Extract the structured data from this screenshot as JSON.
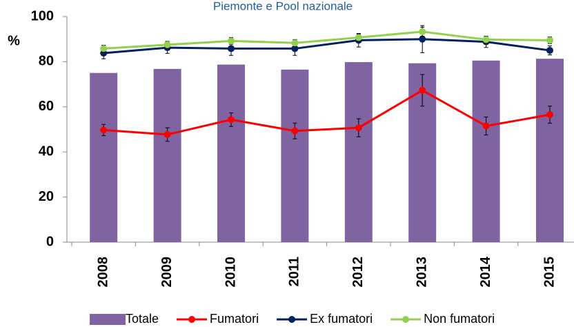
{
  "chart_data": {
    "type": "bar_line",
    "title": "Piemonte e Pool nazionale",
    "y_label": "%",
    "categories": [
      "2008",
      "2009",
      "2010",
      "2011",
      "2012",
      "2013",
      "2014",
      "2015"
    ],
    "ylim": [
      0,
      100
    ],
    "yticks": [
      0,
      20,
      40,
      60,
      80,
      100
    ],
    "grid": false,
    "legend": "bottom",
    "series": [
      {
        "name": "Totale",
        "kind": "bar",
        "color": "#8064a2",
        "values": [
          75,
          76.8,
          78.7,
          76.5,
          79.8,
          79.3,
          80.5,
          81.3
        ]
      },
      {
        "name": "Fumatori",
        "kind": "line",
        "color": "#ff0000",
        "values": [
          49.7,
          47.7,
          54.3,
          49.3,
          50.7,
          67.3,
          51.5,
          56.5
        ],
        "errors": [
          2.5,
          3,
          3,
          3.5,
          4,
          7,
          4,
          3.8
        ]
      },
      {
        "name": "Ex fumatori",
        "kind": "line",
        "color": "#002060",
        "values": [
          83.8,
          86.2,
          85.8,
          85.8,
          89.5,
          90,
          88.8,
          85
        ],
        "errors": [
          2.5,
          2.5,
          3,
          3,
          3,
          6,
          2.5,
          2
        ]
      },
      {
        "name": "Non fumatori",
        "kind": "line",
        "color": "#92d050",
        "values": [
          85.8,
          87.5,
          89.2,
          88.3,
          90.7,
          93.3,
          89.8,
          89.5
        ],
        "errors": [
          1.5,
          1.5,
          1.5,
          1.5,
          1.5,
          2,
          1.5,
          1.5
        ]
      }
    ]
  }
}
